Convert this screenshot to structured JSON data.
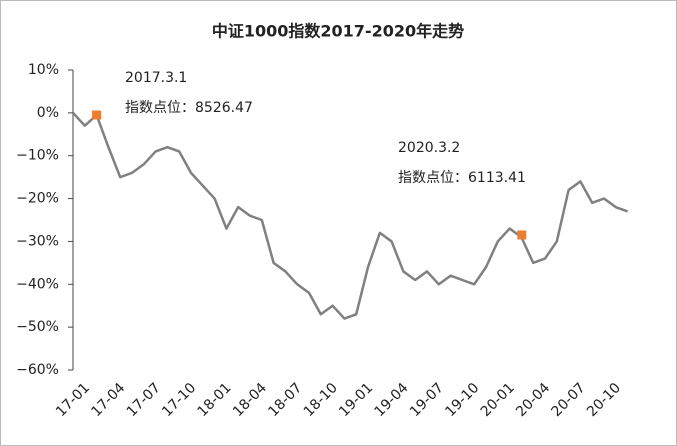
{
  "chart_data": {
    "type": "line",
    "title": "中证1000指数2017-2020年走势",
    "categories": [
      "17-01",
      null,
      null,
      "17-04",
      null,
      null,
      "17-07",
      null,
      null,
      "17-10",
      null,
      null,
      "18-01",
      null,
      null,
      "18-04",
      null,
      null,
      "18-07",
      null,
      null,
      "18-10",
      null,
      null,
      "19-01",
      null,
      null,
      "19-04",
      null,
      null,
      "19-07",
      null,
      null,
      "19-10",
      null,
      null,
      "20-01",
      null,
      null,
      "20-04",
      null,
      null,
      "20-07",
      null,
      null,
      "20-10",
      null,
      null
    ],
    "series": [
      {
        "color": "#808080",
        "values": [
          0,
          -3,
          -0.5,
          -8,
          -15,
          -14,
          -12,
          -9,
          -8,
          -9,
          -14,
          -17,
          -20,
          -27,
          -22,
          -24,
          -25,
          -35,
          -37,
          -40,
          -42,
          -47,
          -45,
          -48,
          -47,
          -36,
          -28,
          -30,
          -37,
          -39,
          -37,
          -40,
          -38,
          -39,
          -40,
          -36,
          -30,
          -27,
          -29,
          -35,
          -34,
          -30,
          -18,
          -16,
          -21,
          -20,
          -22,
          -23
        ]
      }
    ],
    "annotations": [
      {
        "date": "2017.3.1",
        "label": "指数点位：8526.47",
        "value": -0.5,
        "color": "#ed7d31"
      },
      {
        "date": "2020.3.2",
        "label": "指数点位：6113.41",
        "value": -28.5,
        "color": "#ed7d31"
      }
    ],
    "ylim": [
      -60,
      10
    ],
    "yticks": [
      {
        "value": 10,
        "label": "10%"
      },
      {
        "value": 0,
        "label": "0%"
      },
      {
        "value": -10,
        "label": "−10%"
      },
      {
        "value": -20,
        "label": "−20%"
      },
      {
        "value": -30,
        "label": "−30%"
      },
      {
        "value": -40,
        "label": "−40%"
      },
      {
        "value": -50,
        "label": "−50%"
      },
      {
        "value": -60,
        "label": "−60%"
      }
    ],
    "grid": false
  }
}
